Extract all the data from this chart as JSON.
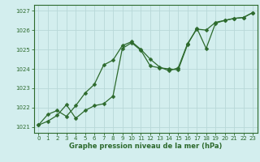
{
  "xlabel": "Graphe pression niveau de la mer (hPa)",
  "xlim": [
    -0.5,
    23.5
  ],
  "ylim": [
    1020.7,
    1027.3
  ],
  "yticks": [
    1021,
    1022,
    1023,
    1024,
    1025,
    1026,
    1027
  ],
  "xticks": [
    0,
    1,
    2,
    3,
    4,
    5,
    6,
    7,
    8,
    9,
    10,
    11,
    12,
    13,
    14,
    15,
    16,
    17,
    18,
    19,
    20,
    21,
    22,
    23
  ],
  "bg_color": "#d3eeee",
  "line_color": "#2d6a2d",
  "grid_color": "#b8d8d8",
  "spine_color": "#2d6a2d",
  "series1_x": [
    0,
    1,
    2,
    3,
    4,
    5,
    6,
    7,
    8,
    9,
    10,
    11,
    12,
    13,
    14,
    15,
    16,
    17,
    18,
    19,
    20,
    21,
    22,
    23
  ],
  "series1_y": [
    1021.1,
    1021.65,
    1021.85,
    1021.55,
    1022.1,
    1022.75,
    1023.2,
    1024.2,
    1024.45,
    1025.2,
    1025.4,
    1025.0,
    1024.5,
    1024.1,
    1023.9,
    1024.05,
    1025.3,
    1026.05,
    1026.0,
    1026.4,
    1026.5,
    1026.6,
    1026.65,
    1026.9
  ],
  "series2_x": [
    0,
    1,
    2,
    3,
    4,
    5,
    6,
    7,
    8,
    9,
    10,
    11,
    12,
    13,
    14,
    15,
    16,
    17,
    18,
    19,
    20,
    21,
    22,
    23
  ],
  "series2_y": [
    1021.1,
    1021.3,
    1021.6,
    1022.15,
    1021.45,
    1021.85,
    1022.1,
    1022.2,
    1022.6,
    1025.05,
    1025.35,
    1024.95,
    1024.15,
    1024.05,
    1024.0,
    1023.95,
    1025.25,
    1026.1,
    1025.05,
    1026.35,
    1026.5,
    1026.6,
    1026.65,
    1026.9
  ],
  "marker": "D",
  "markersize": 2.5,
  "linewidth": 0.9,
  "tick_fontsize": 5.0,
  "xlabel_fontsize": 6.0
}
